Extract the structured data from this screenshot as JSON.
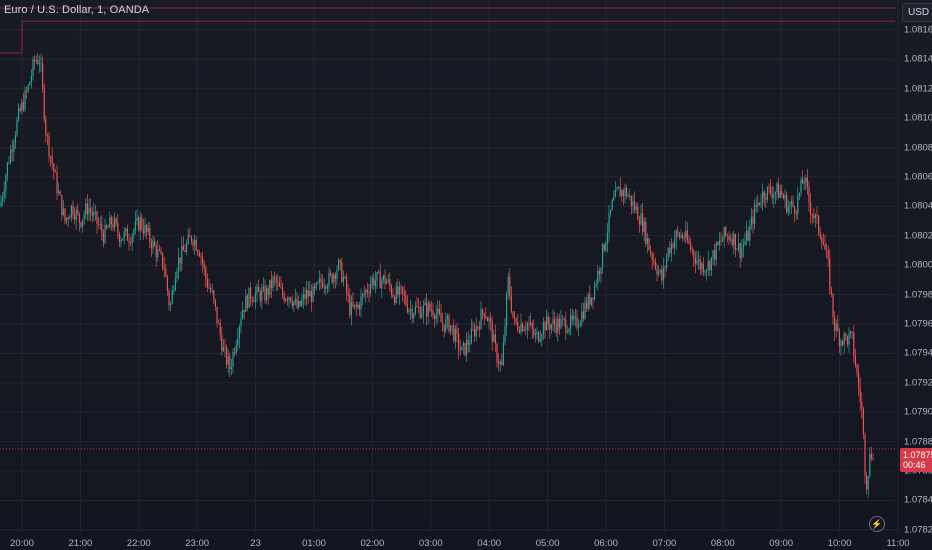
{
  "header": {
    "title": "Euro / U.S. Dollar, 1, OANDA",
    "currency": "USD"
  },
  "price_label": {
    "value": "1.07875",
    "countdown": "00:46"
  },
  "colors": {
    "up": "#26a69a",
    "down": "#ef5350",
    "price_line": "#d6394a",
    "grid": "#232632",
    "background": "#181b24"
  },
  "icons": [
    "replay-lightning-icon"
  ],
  "chart_data": {
    "type": "candlestick",
    "title": "Euro / U.S. Dollar, 1, OANDA",
    "ylim": [
      1.0781,
      1.0817
    ],
    "y_ticks": [
      "1.08160",
      "1.08140",
      "1.08120",
      "1.08100",
      "1.08080",
      "1.08060",
      "1.08040",
      "1.08020",
      "1.08000",
      "1.07980",
      "1.07960",
      "1.07940",
      "1.07920",
      "1.07900",
      "1.07880",
      "1.07860",
      "1.07840",
      "1.07820"
    ],
    "x_ticks": [
      "20:00",
      "21:00",
      "22:00",
      "23:00",
      "23",
      "01:00",
      "02:00",
      "03:00",
      "04:00",
      "05:00",
      "06:00",
      "07:00",
      "08:00",
      "09:00",
      "10:00",
      "11:00"
    ],
    "current_price": 1.07875,
    "upper_band": [
      1.08175,
      1.08166
    ],
    "close_path": [
      [
        0,
        1.0804
      ],
      [
        8,
        1.0807
      ],
      [
        18,
        1.081
      ],
      [
        28,
        1.0812
      ],
      [
        35,
        1.0814
      ],
      [
        40,
        1.0814
      ],
      [
        46,
        1.0809
      ],
      [
        52,
        1.0807
      ],
      [
        58,
        1.0805
      ],
      [
        65,
        1.0803
      ],
      [
        72,
        1.0804
      ],
      [
        80,
        1.0803
      ],
      [
        88,
        1.0804
      ],
      [
        96,
        1.0803
      ],
      [
        104,
        1.0802
      ],
      [
        112,
        1.0803
      ],
      [
        120,
        1.0802
      ],
      [
        130,
        1.0802
      ],
      [
        140,
        1.0803
      ],
      [
        148,
        1.0802
      ],
      [
        156,
        1.0801
      ],
      [
        164,
        1.08
      ],
      [
        170,
        1.0797
      ],
      [
        176,
        1.08
      ],
      [
        184,
        1.0801
      ],
      [
        192,
        1.0802
      ],
      [
        200,
        1.0801
      ],
      [
        206,
        1.0799
      ],
      [
        212,
        1.0798
      ],
      [
        218,
        1.0796
      ],
      [
        224,
        1.0794
      ],
      [
        230,
        1.0793
      ],
      [
        236,
        1.0795
      ],
      [
        242,
        1.0797
      ],
      [
        250,
        1.0798
      ],
      [
        258,
        1.0798
      ],
      [
        266,
        1.0798
      ],
      [
        274,
        1.0799
      ],
      [
        282,
        1.0798
      ],
      [
        290,
        1.0798
      ],
      [
        298,
        1.0797
      ],
      [
        306,
        1.0798
      ],
      [
        314,
        1.0798
      ],
      [
        322,
        1.0799
      ],
      [
        330,
        1.0799
      ],
      [
        338,
        1.08
      ],
      [
        344,
        1.0799
      ],
      [
        350,
        1.0797
      ],
      [
        356,
        1.0797
      ],
      [
        364,
        1.0798
      ],
      [
        372,
        1.0799
      ],
      [
        380,
        1.0799
      ],
      [
        386,
        1.0799
      ],
      [
        394,
        1.0798
      ],
      [
        402,
        1.0798
      ],
      [
        410,
        1.0797
      ],
      [
        418,
        1.0797
      ],
      [
        426,
        1.0797
      ],
      [
        434,
        1.0797
      ],
      [
        442,
        1.0796
      ],
      [
        450,
        1.0796
      ],
      [
        456,
        1.0795
      ],
      [
        462,
        1.0794
      ],
      [
        470,
        1.0795
      ],
      [
        478,
        1.0796
      ],
      [
        484,
        1.0797
      ],
      [
        490,
        1.0796
      ],
      [
        496,
        1.0794
      ],
      [
        502,
        1.0793
      ],
      [
        508,
        1.0799
      ],
      [
        514,
        1.0796
      ],
      [
        520,
        1.0796
      ],
      [
        528,
        1.0796
      ],
      [
        536,
        1.0795
      ],
      [
        544,
        1.0796
      ],
      [
        552,
        1.0796
      ],
      [
        560,
        1.0796
      ],
      [
        568,
        1.0796
      ],
      [
        576,
        1.0796
      ],
      [
        584,
        1.0797
      ],
      [
        592,
        1.0798
      ],
      [
        600,
        1.08
      ],
      [
        606,
        1.0802
      ],
      [
        612,
        1.0804
      ],
      [
        618,
        1.0805
      ],
      [
        626,
        1.0805
      ],
      [
        634,
        1.0804
      ],
      [
        642,
        1.0803
      ],
      [
        650,
        1.0801
      ],
      [
        656,
        1.08
      ],
      [
        662,
        1.0799
      ],
      [
        668,
        1.0801
      ],
      [
        676,
        1.0802
      ],
      [
        684,
        1.0802
      ],
      [
        692,
        1.0801
      ],
      [
        700,
        1.08
      ],
      [
        708,
        1.08
      ],
      [
        716,
        1.0801
      ],
      [
        724,
        1.0802
      ],
      [
        732,
        1.0802
      ],
      [
        740,
        1.0801
      ],
      [
        748,
        1.0802
      ],
      [
        756,
        1.0804
      ],
      [
        764,
        1.0805
      ],
      [
        772,
        1.0805
      ],
      [
        780,
        1.0805
      ],
      [
        788,
        1.0804
      ],
      [
        796,
        1.0804
      ],
      [
        804,
        1.0806
      ],
      [
        810,
        1.0804
      ],
      [
        816,
        1.0803
      ],
      [
        822,
        1.0802
      ],
      [
        828,
        1.08
      ],
      [
        834,
        1.0796
      ],
      [
        840,
        1.0795
      ],
      [
        846,
        1.0795
      ],
      [
        852,
        1.0795
      ],
      [
        858,
        1.0792
      ],
      [
        862,
        1.079
      ],
      [
        866,
        1.0785
      ],
      [
        870,
        1.0787
      ],
      [
        874,
        1.07875
      ]
    ]
  }
}
